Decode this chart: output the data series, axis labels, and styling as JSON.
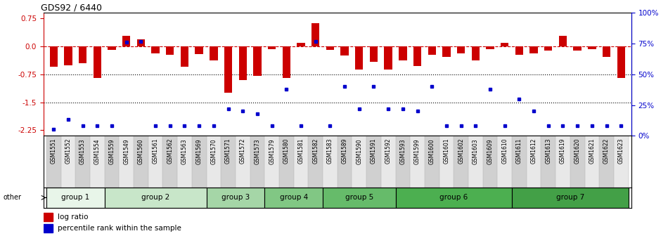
{
  "title": "GDS92 / 6440",
  "samples": [
    "GSM1551",
    "GSM1552",
    "GSM1553",
    "GSM1554",
    "GSM1559",
    "GSM1549",
    "GSM1560",
    "GSM1561",
    "GSM1562",
    "GSM1563",
    "GSM1569",
    "GSM1570",
    "GSM1571",
    "GSM1572",
    "GSM1573",
    "GSM1579",
    "GSM1580",
    "GSM1581",
    "GSM1582",
    "GSM1583",
    "GSM1589",
    "GSM1590",
    "GSM1591",
    "GSM1592",
    "GSM1593",
    "GSM1599",
    "GSM1600",
    "GSM1601",
    "GSM1602",
    "GSM1603",
    "GSM1609",
    "GSM1610",
    "GSM1611",
    "GSM1612",
    "GSM1613",
    "GSM1619",
    "GSM1620",
    "GSM1621",
    "GSM1622",
    "GSM1623"
  ],
  "log_ratio": [
    -0.55,
    -0.5,
    -0.45,
    -0.85,
    -0.1,
    0.28,
    0.2,
    -0.18,
    -0.22,
    -0.55,
    -0.2,
    -0.38,
    -1.25,
    -0.9,
    -0.8,
    -0.08,
    -0.85,
    0.1,
    0.62,
    -0.1,
    -0.25,
    -0.62,
    -0.42,
    -0.62,
    -0.38,
    -0.52,
    -0.22,
    -0.28,
    -0.18,
    -0.38,
    -0.08,
    0.1,
    -0.22,
    -0.18,
    -0.12,
    0.28,
    -0.12,
    -0.08,
    -0.28,
    -0.85
  ],
  "percentile": [
    5,
    13,
    8,
    8,
    8,
    76,
    77,
    8,
    8,
    8,
    8,
    8,
    22,
    20,
    18,
    8,
    38,
    8,
    77,
    8,
    40,
    22,
    40,
    22,
    22,
    20,
    40,
    8,
    8,
    8,
    38,
    8,
    30,
    20,
    8,
    8,
    8,
    8,
    8,
    8
  ],
  "groups": [
    {
      "label": "group 1",
      "start": 0,
      "end": 4,
      "color": "#e8f5e9"
    },
    {
      "label": "group 2",
      "start": 4,
      "end": 11,
      "color": "#c8e6c9"
    },
    {
      "label": "group 3",
      "start": 11,
      "end": 15,
      "color": "#a5d6a7"
    },
    {
      "label": "group 4",
      "start": 15,
      "end": 19,
      "color": "#81c784"
    },
    {
      "label": "group 5",
      "start": 19,
      "end": 24,
      "color": "#66bb6a"
    },
    {
      "label": "group 6",
      "start": 24,
      "end": 32,
      "color": "#4caf50"
    },
    {
      "label": "group 7",
      "start": 32,
      "end": 40,
      "color": "#43a047"
    }
  ],
  "ylim_left": [
    -2.4,
    0.9
  ],
  "ylim_right": [
    0,
    100
  ],
  "yticks_left": [
    0.75,
    0.0,
    -0.75,
    -1.5,
    -2.25
  ],
  "yticks_right": [
    100,
    75,
    50,
    25,
    0
  ],
  "bar_color": "#cc0000",
  "dot_color": "#0000cc",
  "ref_line_color": "#cc0000",
  "dot_line1": -0.75,
  "dot_line2": -1.5,
  "bar_width": 0.55,
  "fig_width": 9.5,
  "fig_height": 3.36,
  "dpi": 100
}
